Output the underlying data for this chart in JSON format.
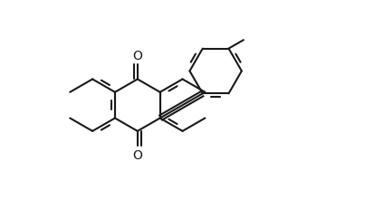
{
  "bg_color": "#ffffff",
  "line_color": "#1a1a1a",
  "line_width": 1.5,
  "fig_width": 4.24,
  "fig_height": 2.32,
  "dpi": 100,
  "s_hex": 0.38,
  "xlim": [
    -0.05,
    4.3
  ],
  "ylim": [
    0.1,
    2.22
  ]
}
